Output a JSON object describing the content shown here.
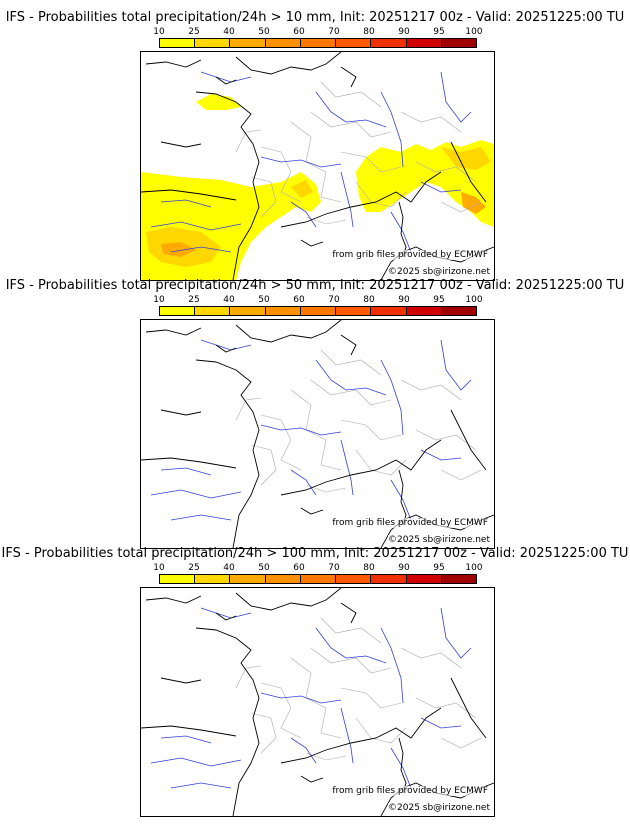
{
  "colorbar": {
    "labels": [
      "10",
      "25",
      "40",
      "50",
      "60",
      "70",
      "80",
      "90",
      "95",
      "100"
    ],
    "colors": [
      "#ffff00",
      "#ffd700",
      "#ffaa00",
      "#ff9100",
      "#ff7800",
      "#ff5a00",
      "#f03000",
      "#d00000",
      "#a00000",
      "#6b0000"
    ]
  },
  "credit": {
    "source": "from grib files provided by ECMWF",
    "copyright": "©2025 sb@irizone.net"
  },
  "panels": [
    {
      "title": "IFS - Probabilities total precipitation/24h > 10 mm, Init: 20251217 00z - Valid: 20251225:00 TU",
      "has_precip": true
    },
    {
      "title": "IFS - Probabilities total precipitation/24h > 50 mm, Init: 20251217 00z - Valid: 20251225:00 TU",
      "has_precip": false
    },
    {
      "title": "IFS - Probabilities total precipitation/24h > 100 mm, Init: 20251217 00z - Valid: 20251225:00 TU",
      "has_precip": false
    }
  ]
}
